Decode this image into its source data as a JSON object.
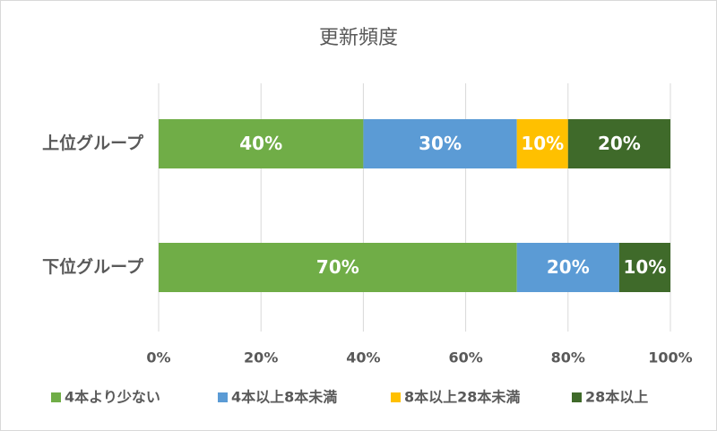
{
  "chart_data": {
    "type": "stacked-barh",
    "title": "更新頻度",
    "categories": [
      "上位グループ",
      "下位グループ"
    ],
    "series": [
      {
        "name": "4本より少ない",
        "color": "#70ad47",
        "values": [
          40,
          70
        ],
        "value_labels": [
          "40%",
          "70%"
        ]
      },
      {
        "name": "4本以上8本未満",
        "color": "#5b9bd5",
        "values": [
          30,
          20
        ],
        "value_labels": [
          "30%",
          "20%"
        ]
      },
      {
        "name": "8本以上28本未満",
        "color": "#ffc000",
        "values": [
          10,
          0
        ],
        "value_labels": [
          "10%",
          null
        ]
      },
      {
        "name": "28本以上",
        "color": "#3f6a2a",
        "values": [
          20,
          10
        ],
        "value_labels": [
          "20%",
          "10%"
        ]
      }
    ],
    "xlim": [
      0,
      100
    ],
    "xticks": [
      {
        "value": 0,
        "label": "0%"
      },
      {
        "value": 20,
        "label": "20%"
      },
      {
        "value": 40,
        "label": "40%"
      },
      {
        "value": 60,
        "label": "60%"
      },
      {
        "value": 80,
        "label": "80%"
      },
      {
        "value": 100,
        "label": "100%"
      }
    ],
    "grid": true,
    "legend": "bottom"
  }
}
